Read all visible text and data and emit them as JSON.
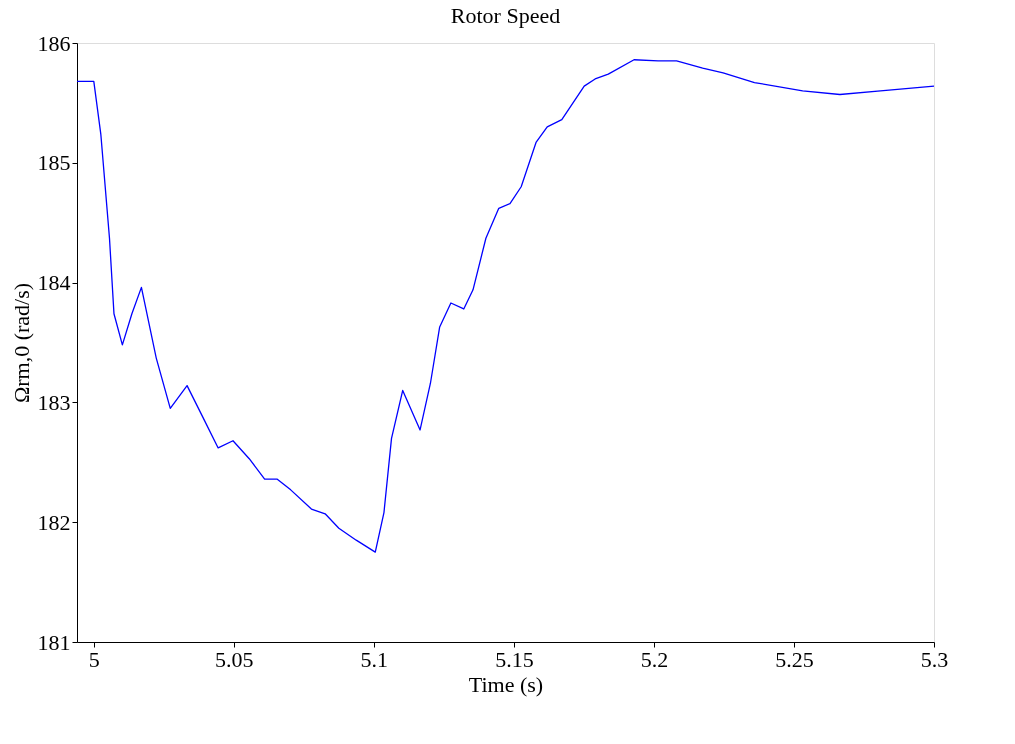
{
  "chart_data": {
    "type": "line",
    "title": "Rotor Speed",
    "xlabel": "Time (s)",
    "ylabel": "Ωrm,0 (rad/s)",
    "x": [
      4.994,
      5.0,
      5.0025,
      5.0056,
      5.0072,
      5.0102,
      5.0136,
      5.017,
      5.0223,
      5.0273,
      5.0333,
      5.0395,
      5.0444,
      5.0497,
      5.0555,
      5.061,
      5.0654,
      5.0703,
      5.0777,
      5.0826,
      5.0875,
      5.0937,
      5.1005,
      5.1036,
      5.1063,
      5.1103,
      5.1165,
      5.1202,
      5.1235,
      5.1275,
      5.1321,
      5.1354,
      5.14,
      5.1446,
      5.1486,
      5.1526,
      5.1579,
      5.1619,
      5.1671,
      5.1751,
      5.179,
      5.1837,
      5.1929,
      5.2015,
      5.2081,
      5.2174,
      5.2247,
      5.2359,
      5.2531,
      5.2664,
      5.2809,
      5.3
    ],
    "series": [
      {
        "color": "#0000ff",
        "values": [
          185.68,
          185.68,
          185.24,
          184.37,
          183.74,
          183.48,
          183.74,
          183.96,
          183.37,
          182.95,
          183.14,
          182.85,
          182.62,
          182.68,
          182.53,
          182.36,
          182.36,
          182.27,
          182.11,
          182.07,
          181.95,
          181.85,
          181.75,
          182.08,
          182.7,
          183.1,
          182.77,
          183.16,
          183.63,
          183.83,
          183.78,
          183.94,
          184.37,
          184.62,
          184.66,
          184.8,
          185.17,
          185.3,
          185.36,
          185.64,
          185.7,
          185.74,
          185.86,
          185.85,
          185.85,
          185.79,
          185.75,
          185.67,
          185.6,
          185.57,
          185.6,
          185.64
        ]
      }
    ],
    "xlim": [
      4.994,
      5.3
    ],
    "xticks": [
      5,
      5.05,
      5.1,
      5.15,
      5.2,
      5.25,
      5.3
    ],
    "ylim": [
      181,
      186
    ],
    "yticks": [
      181,
      182,
      183,
      184,
      185,
      186
    ],
    "grid": false,
    "legend": false,
    "marker": "none",
    "line_style": "solid"
  }
}
